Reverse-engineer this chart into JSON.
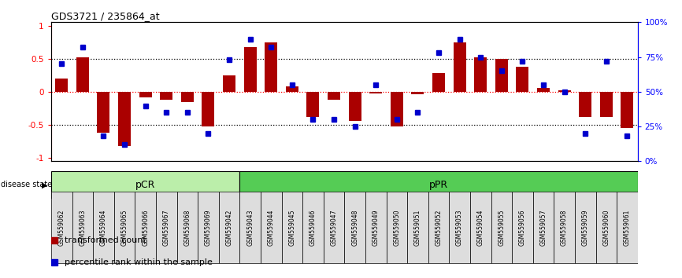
{
  "title": "GDS3721 / 235864_at",
  "samples": [
    "GSM559062",
    "GSM559063",
    "GSM559064",
    "GSM559065",
    "GSM559066",
    "GSM559067",
    "GSM559068",
    "GSM559069",
    "GSM559042",
    "GSM559043",
    "GSM559044",
    "GSM559045",
    "GSM559046",
    "GSM559047",
    "GSM559048",
    "GSM559049",
    "GSM559050",
    "GSM559051",
    "GSM559052",
    "GSM559053",
    "GSM559054",
    "GSM559055",
    "GSM559056",
    "GSM559057",
    "GSM559058",
    "GSM559059",
    "GSM559060",
    "GSM559061"
  ],
  "transformed_count": [
    0.2,
    0.52,
    -0.62,
    -0.82,
    -0.08,
    -0.12,
    -0.16,
    -0.52,
    0.25,
    0.68,
    0.75,
    0.08,
    -0.38,
    -0.12,
    -0.44,
    -0.03,
    -0.52,
    -0.04,
    0.28,
    0.75,
    0.52,
    0.5,
    0.38,
    0.06,
    0.02,
    -0.38,
    -0.38,
    -0.55
  ],
  "percentile_rank": [
    70,
    82,
    18,
    12,
    40,
    35,
    35,
    20,
    73,
    88,
    82,
    55,
    30,
    30,
    25,
    55,
    30,
    35,
    78,
    88,
    75,
    65,
    72,
    55,
    50,
    20,
    72,
    18
  ],
  "pCR_count": 9,
  "pCR_label": "pCR",
  "pPR_label": "pPR",
  "bar_color": "#aa0000",
  "dot_color": "#0000cc",
  "pCR_color": "#bbeeaa",
  "pPR_color": "#55cc55",
  "yticks_left": [
    -1,
    -0.5,
    0,
    0.5,
    1
  ],
  "yticks_right": [
    0,
    25,
    50,
    75,
    100
  ],
  "hlines_dotted": [
    -0.5,
    0.5
  ],
  "hline_red": 0,
  "ylim": [
    -1.05,
    1.05
  ]
}
